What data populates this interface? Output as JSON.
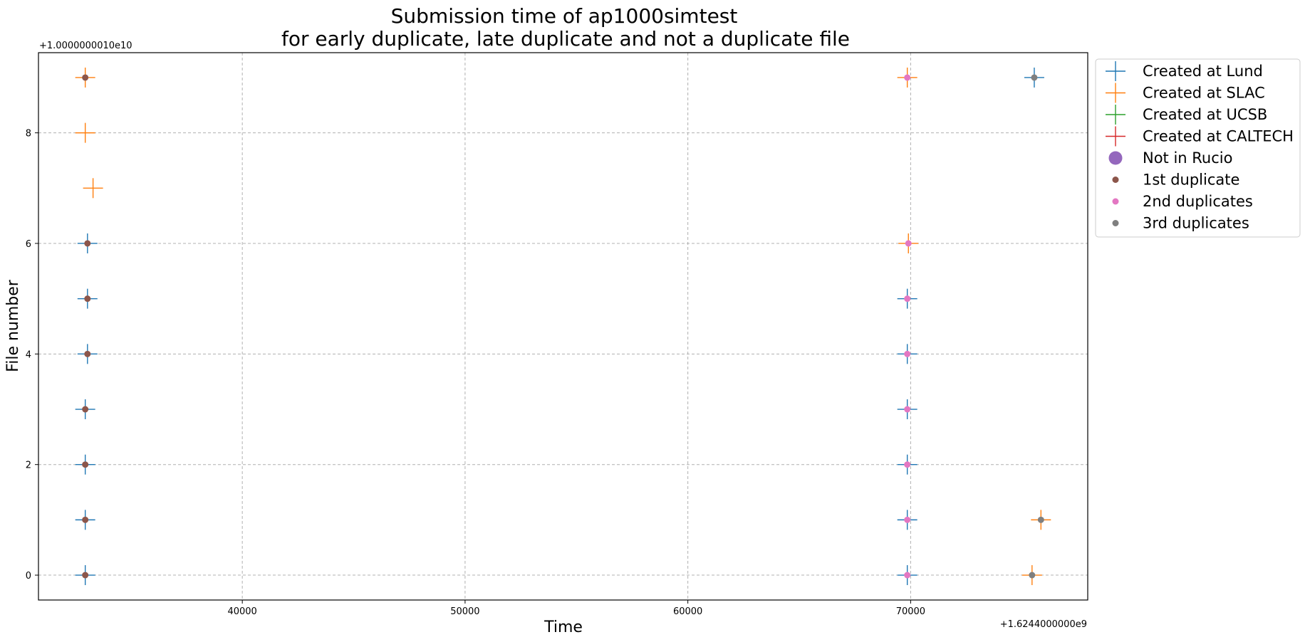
{
  "chart_data": {
    "type": "scatter",
    "title_line1": "Submission time of ap1000simtest",
    "title_line2": "for early duplicate, late duplicate and not a duplicate file",
    "xlabel": "Time",
    "ylabel": "File number",
    "x_offset_label": "+1.6244000000e9",
    "y_offset_label": "+1.0000000010e10",
    "xlim": [
      30850,
      77950
    ],
    "ylim": [
      -0.45,
      9.45
    ],
    "x_ticks": [
      40000,
      50000,
      60000,
      70000
    ],
    "x_tick_labels": [
      "40000",
      "50000",
      "60000",
      "70000"
    ],
    "y_ticks": [
      0,
      2,
      4,
      6,
      8
    ],
    "y_tick_labels": [
      "0",
      "2",
      "4",
      "6",
      "8"
    ],
    "grid": true,
    "legend_position": "outside-upper-right",
    "colors": {
      "lund": "#1f77b4",
      "slac": "#ff7f0e",
      "ucsb": "#2ca02c",
      "caltech": "#d62728",
      "not_in_rucio": "#9467bd",
      "first": "#8c564b",
      "second": "#e377c2",
      "third": "#7f7f7f"
    },
    "legend": [
      {
        "label": "Created at Lund",
        "marker": "plus",
        "color": "#1f77b4"
      },
      {
        "label": "Created at SLAC",
        "marker": "plus",
        "color": "#ff7f0e"
      },
      {
        "label": "Created at UCSB",
        "marker": "plus",
        "color": "#2ca02c"
      },
      {
        "label": "Created at CALTECH",
        "marker": "plus",
        "color": "#d62728"
      },
      {
        "label": "Not in Rucio",
        "marker": "bigdot",
        "color": "#9467bd"
      },
      {
        "label": "1st duplicate",
        "marker": "dot",
        "color": "#8c564b"
      },
      {
        "label": "2nd duplicates",
        "marker": "dot",
        "color": "#e377c2"
      },
      {
        "label": "3rd duplicates",
        "marker": "dot",
        "color": "#7f7f7f"
      }
    ],
    "series": [
      {
        "name": "Created at Lund",
        "marker": "plus",
        "color": "#1f77b4",
        "points": [
          {
            "x": 32950,
            "y": 0
          },
          {
            "x": 32950,
            "y": 1
          },
          {
            "x": 32950,
            "y": 2
          },
          {
            "x": 32950,
            "y": 3
          },
          {
            "x": 33050,
            "y": 4
          },
          {
            "x": 33050,
            "y": 5
          },
          {
            "x": 33050,
            "y": 6
          },
          {
            "x": 69850,
            "y": 0
          },
          {
            "x": 69850,
            "y": 1
          },
          {
            "x": 69850,
            "y": 2
          },
          {
            "x": 69850,
            "y": 3
          },
          {
            "x": 69850,
            "y": 4
          },
          {
            "x": 69850,
            "y": 5
          },
          {
            "x": 75550,
            "y": 9
          }
        ]
      },
      {
        "name": "Created at SLAC",
        "marker": "plus",
        "color": "#ff7f0e",
        "points": [
          {
            "x": 32950,
            "y": 9
          },
          {
            "x": 32950,
            "y": 8
          },
          {
            "x": 33300,
            "y": 7
          },
          {
            "x": 69850,
            "y": 9
          },
          {
            "x": 69900,
            "y": 6
          },
          {
            "x": 75450,
            "y": 0
          },
          {
            "x": 75850,
            "y": 1
          }
        ]
      },
      {
        "name": "1st duplicate",
        "marker": "dot",
        "color": "#8c564b",
        "points": [
          {
            "x": 32950,
            "y": 9
          },
          {
            "x": 33050,
            "y": 6
          },
          {
            "x": 33050,
            "y": 5
          },
          {
            "x": 33050,
            "y": 4
          },
          {
            "x": 32950,
            "y": 3
          },
          {
            "x": 32950,
            "y": 2
          },
          {
            "x": 32950,
            "y": 1
          },
          {
            "x": 32950,
            "y": 0
          }
        ]
      },
      {
        "name": "2nd duplicates",
        "marker": "dot",
        "color": "#e377c2",
        "points": [
          {
            "x": 69850,
            "y": 9
          },
          {
            "x": 69900,
            "y": 6
          },
          {
            "x": 69850,
            "y": 5
          },
          {
            "x": 69850,
            "y": 4
          },
          {
            "x": 69850,
            "y": 3
          },
          {
            "x": 69850,
            "y": 2
          },
          {
            "x": 69850,
            "y": 1
          },
          {
            "x": 69850,
            "y": 0
          }
        ]
      },
      {
        "name": "3rd duplicates",
        "marker": "dot",
        "color": "#7f7f7f",
        "points": [
          {
            "x": 75550,
            "y": 9
          },
          {
            "x": 75850,
            "y": 1
          },
          {
            "x": 75450,
            "y": 0
          }
        ]
      }
    ]
  }
}
